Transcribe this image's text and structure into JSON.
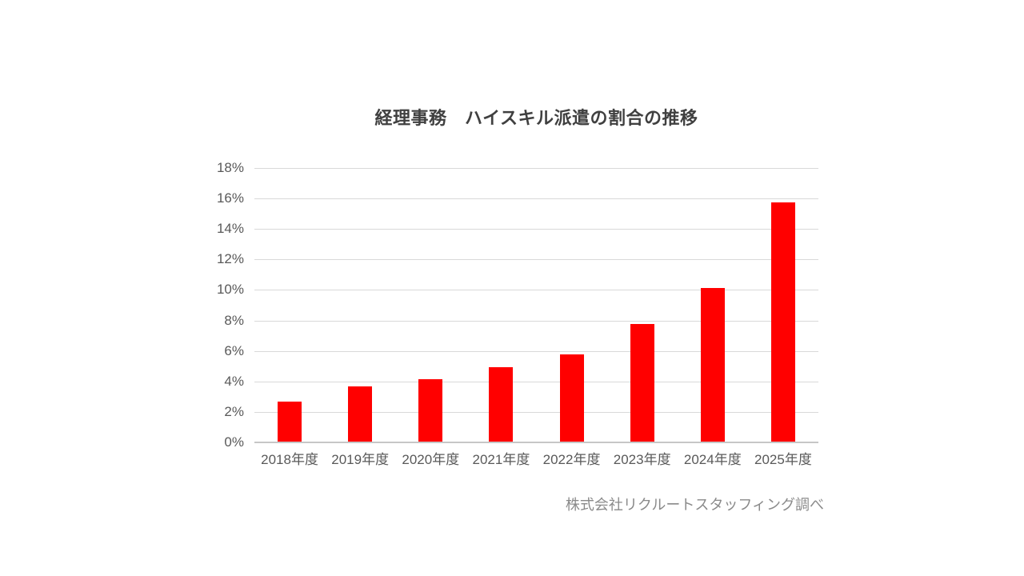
{
  "title": "経理事務　ハイスキル派遣の割合の推移",
  "source_note": "株式会社リクルートスタッフィング調べ",
  "colors": {
    "background": "#FFFFFF",
    "bar": "#FF0000",
    "title_text": "#404040",
    "axis_text": "#595959",
    "gridline": "#D9D9D9",
    "axis_line": "#C6C6C6",
    "source_text": "#8A8A8A"
  },
  "chart_data": {
    "type": "bar",
    "title": "経理事務　ハイスキル派遣の割合の推移",
    "categories": [
      "2018年度",
      "2019年度",
      "2020年度",
      "2021年度",
      "2022年度",
      "2023年度",
      "2024年度",
      "2025年度"
    ],
    "values": [
      2.6,
      3.6,
      4.1,
      4.9,
      5.7,
      7.7,
      10.1,
      15.7
    ],
    "value_unit": "%",
    "xlabel": "",
    "ylabel": "",
    "ylim": [
      0,
      18
    ],
    "ytick_step": 2,
    "ytick_labels": [
      "0%",
      "2%",
      "4%",
      "6%",
      "8%",
      "10%",
      "12%",
      "14%",
      "16%",
      "18%"
    ],
    "grid": true,
    "legend": false,
    "bar_color": "#FF0000",
    "annotation": "株式会社リクルートスタッフィング調べ"
  }
}
